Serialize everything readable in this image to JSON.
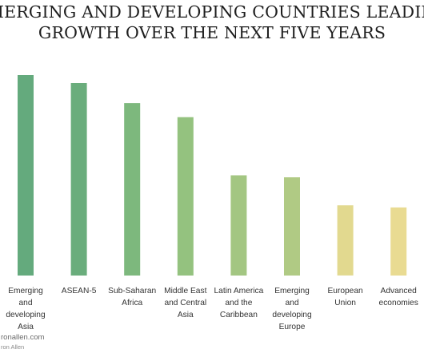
{
  "chart_data": {
    "type": "bar",
    "title_lines": [
      "EMERGING AND DEVELOPING COUNTRIES LEADING",
      "GROWTH OVER THE NEXT FIVE YEARS"
    ],
    "categories": [
      "Emerging and developing Asia",
      "ASEAN-5",
      "Sub-Saharan Africa",
      "Middle East and Central Asia",
      "Latin America and the Caribbean",
      "Emerging and developing Europe",
      "European Union",
      "Advanced economies"
    ],
    "category_lines": [
      "Emerging\nand\ndeveloping\nAsia",
      "ASEAN-5",
      "Sub-Saharan\nAfrica",
      "Middle East\nand Central\nAsia",
      "Latin America\nand the\nCaribbean",
      "Emerging\nand\ndeveloping\nEurope",
      "European\nUnion",
      "Advanced\neconomies"
    ],
    "values": [
      100,
      96,
      86,
      79,
      50,
      49,
      35,
      34
    ],
    "ylim": [
      0,
      100
    ],
    "value_unit": "relative bar height (no axis printed)",
    "grid": false,
    "legend": "none",
    "colors": [
      "#64aa7d",
      "#6aad7c",
      "#7db87d",
      "#94c27f",
      "#a3c682",
      "#b0ca84",
      "#e2d98f",
      "#e9db92"
    ]
  },
  "footer": {
    "site": "ronallen.com",
    "author": "ron Allen"
  }
}
